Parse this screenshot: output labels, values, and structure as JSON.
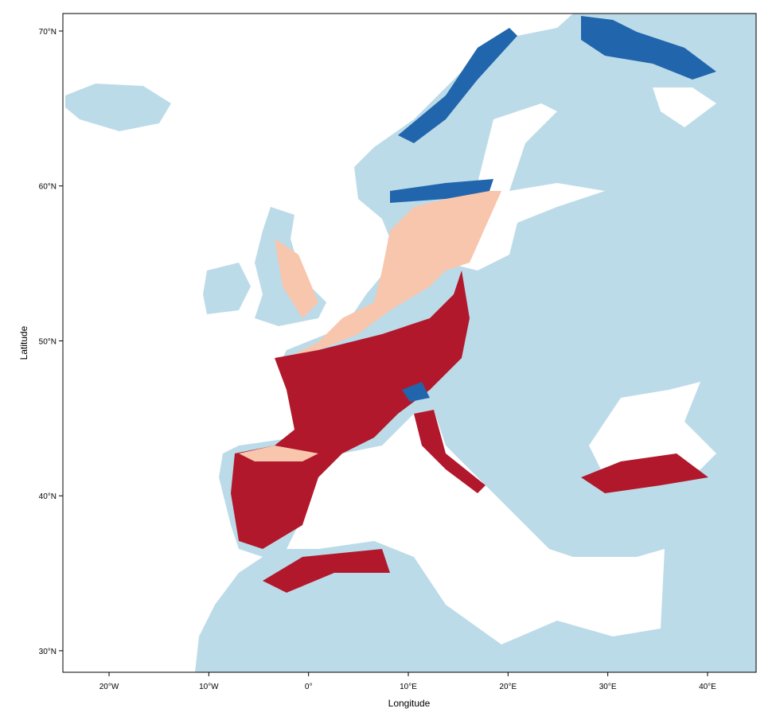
{
  "map": {
    "x_axis": {
      "label": "Longitude",
      "lim": [
        -24.63,
        44.87
      ],
      "ticks": [
        {
          "value": -20,
          "label": "20°W"
        },
        {
          "value": -10,
          "label": "10°W"
        },
        {
          "value": 0,
          "label": "0°"
        },
        {
          "value": 10,
          "label": "10°E"
        },
        {
          "value": 20,
          "label": "20°E"
        },
        {
          "value": 30,
          "label": "30°E"
        },
        {
          "value": 40,
          "label": "40°E"
        }
      ]
    },
    "y_axis": {
      "label": "Latitude",
      "lim": [
        28.61,
        71.13
      ],
      "ticks": [
        {
          "value": 30,
          "label": "30°N"
        },
        {
          "value": 40,
          "label": "40°N"
        },
        {
          "value": 50,
          "label": "50°N"
        },
        {
          "value": 60,
          "label": "60°N"
        },
        {
          "value": 70,
          "label": "70°N"
        }
      ]
    }
  }
}
